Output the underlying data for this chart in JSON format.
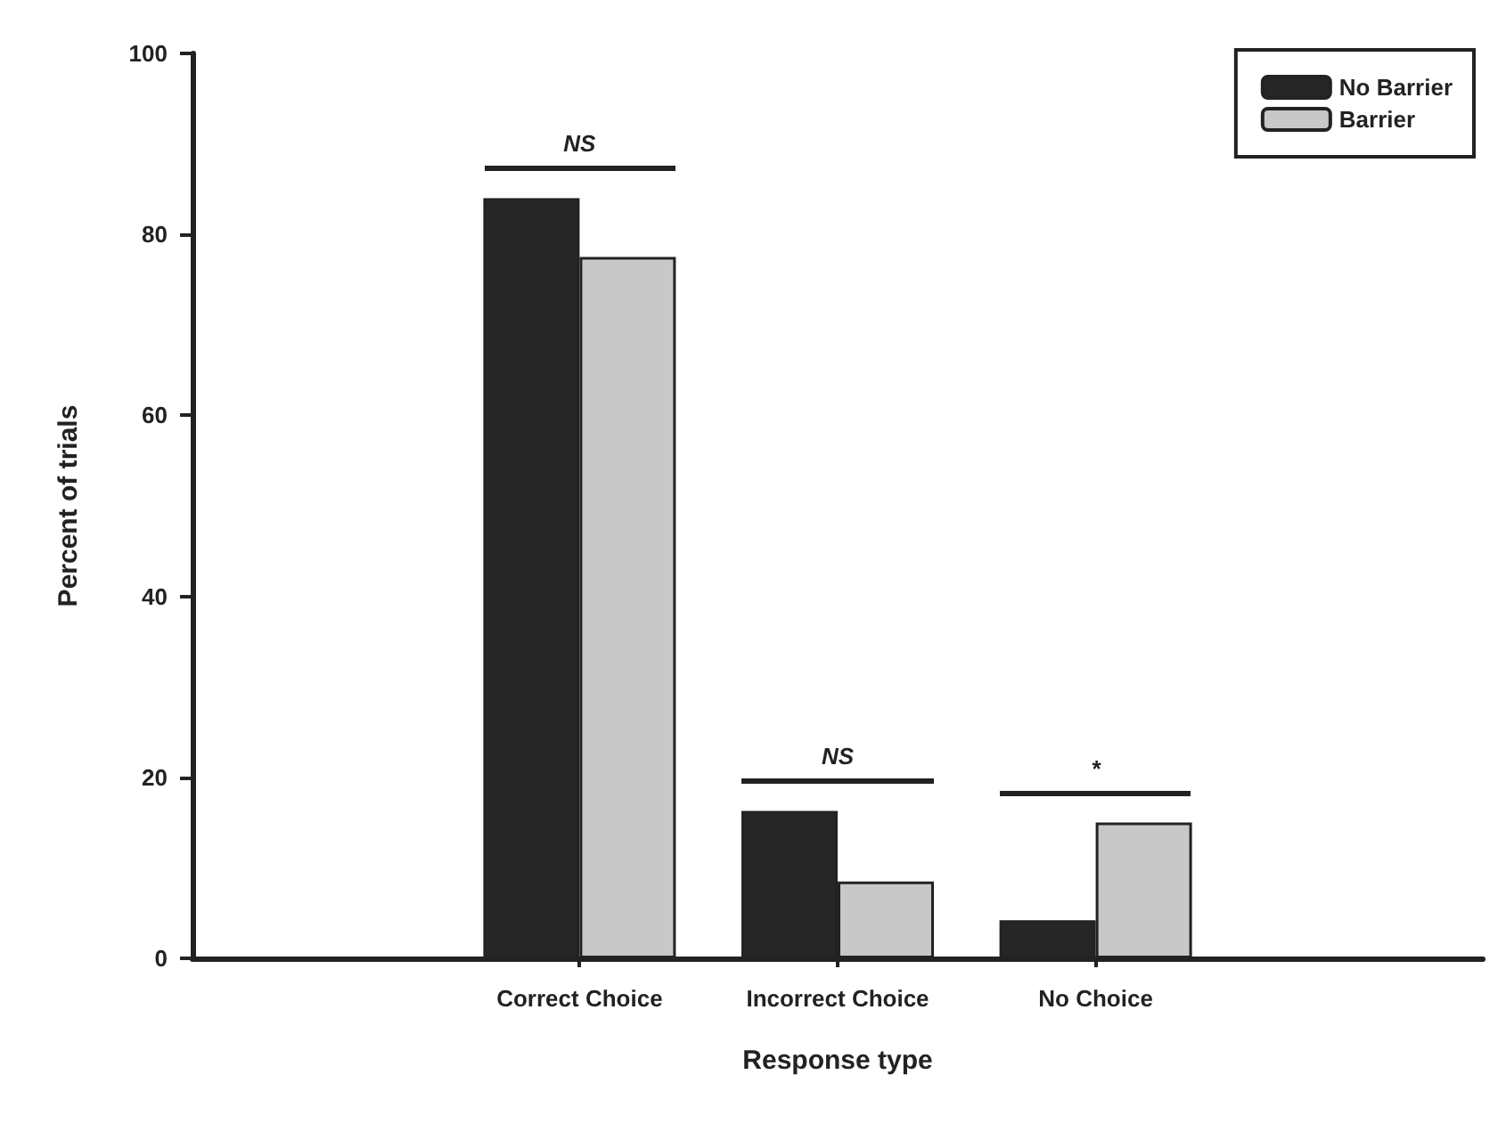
{
  "chart_data": {
    "type": "bar",
    "xlabel": "Response type",
    "ylabel": "Percent of trials",
    "categories": [
      null,
      "Correct Choice",
      "Incorrect Choice",
      "No Choice",
      null
    ],
    "series": [
      {
        "name": "No Barrier",
        "color": "#262626",
        "values": [
          null,
          84,
          16.3,
          4.2,
          null
        ]
      },
      {
        "name": "Barrier",
        "color": "#c8c8c8",
        "values": [
          null,
          77.5,
          8.5,
          15,
          null
        ]
      }
    ],
    "ylim": [
      0,
      100
    ],
    "yticks": [
      0,
      20,
      40,
      60,
      80,
      100
    ],
    "grid": false,
    "legend": "top right",
    "annotations": [
      "NS",
      "NS",
      "*"
    ]
  }
}
